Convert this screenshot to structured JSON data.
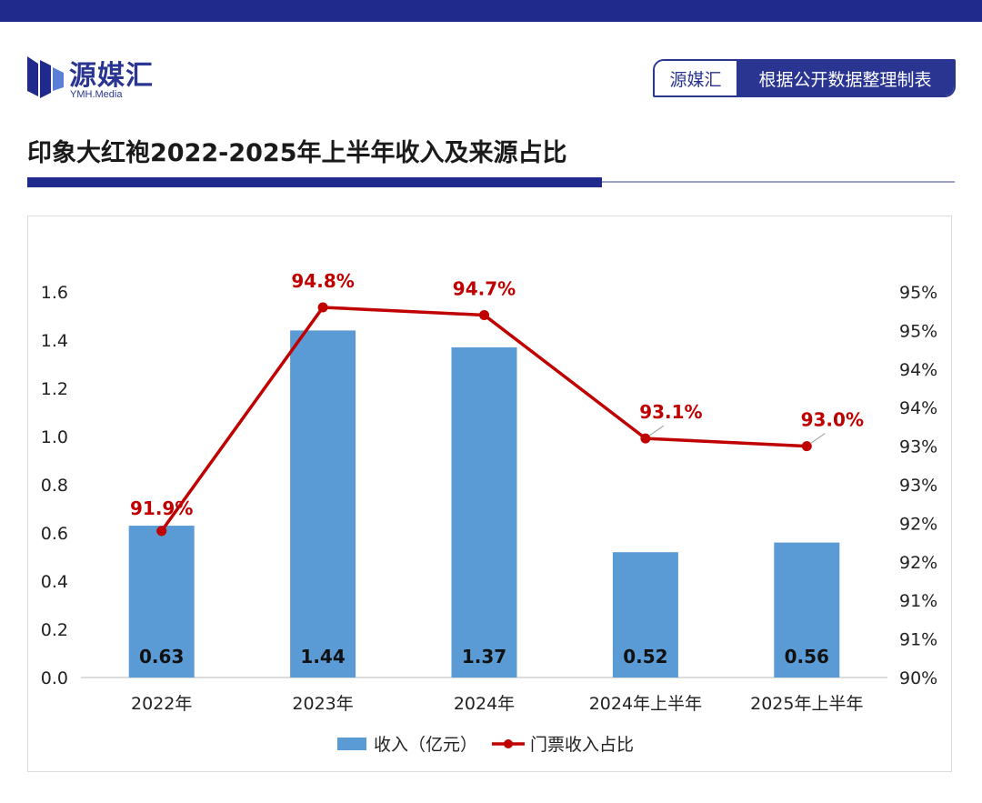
{
  "header": {
    "brand_name": "源媒汇",
    "brand_sub": "YMH.Media",
    "source_left": "源媒汇",
    "source_right": "根据公开数据整理制表",
    "title": "印象大红袍2022-2025年上半年收入及来源占比"
  },
  "colors": {
    "brand": "#1f2a8c",
    "bar": "#5b9bd5",
    "line": "#c00000"
  },
  "chart_data": {
    "type": "bar",
    "title": "",
    "xlabel": "",
    "ylabel": "",
    "categories": [
      "2022年",
      "2023年",
      "2024年",
      "2024年上半年",
      "2025年上半年"
    ],
    "series": [
      {
        "name": "收入（亿元）",
        "type": "bar",
        "axis": "left",
        "values": [
          0.63,
          1.44,
          1.37,
          0.52,
          0.56
        ],
        "data_labels": [
          "0.63",
          "1.44",
          "1.37",
          "0.52",
          "0.56"
        ]
      },
      {
        "name": "门票收入占比",
        "type": "line",
        "axis": "right",
        "values": [
          91.9,
          94.8,
          94.7,
          93.1,
          93.0
        ],
        "data_labels": [
          "91.9%",
          "94.8%",
          "94.7%",
          "93.1%",
          "93.0%"
        ]
      }
    ],
    "ylim": [
      0,
      1.6
    ],
    "y_ticks": [
      "0.0",
      "0.2",
      "0.4",
      "0.6",
      "0.8",
      "1.0",
      "1.2",
      "1.4",
      "1.6"
    ],
    "y2lim": [
      90,
      95
    ],
    "y2_ticks": [
      "90%",
      "91%",
      "91%",
      "92%",
      "92%",
      "93%",
      "93%",
      "94%",
      "94%",
      "95%",
      "95%"
    ],
    "grid": false,
    "legend": "bottom"
  }
}
